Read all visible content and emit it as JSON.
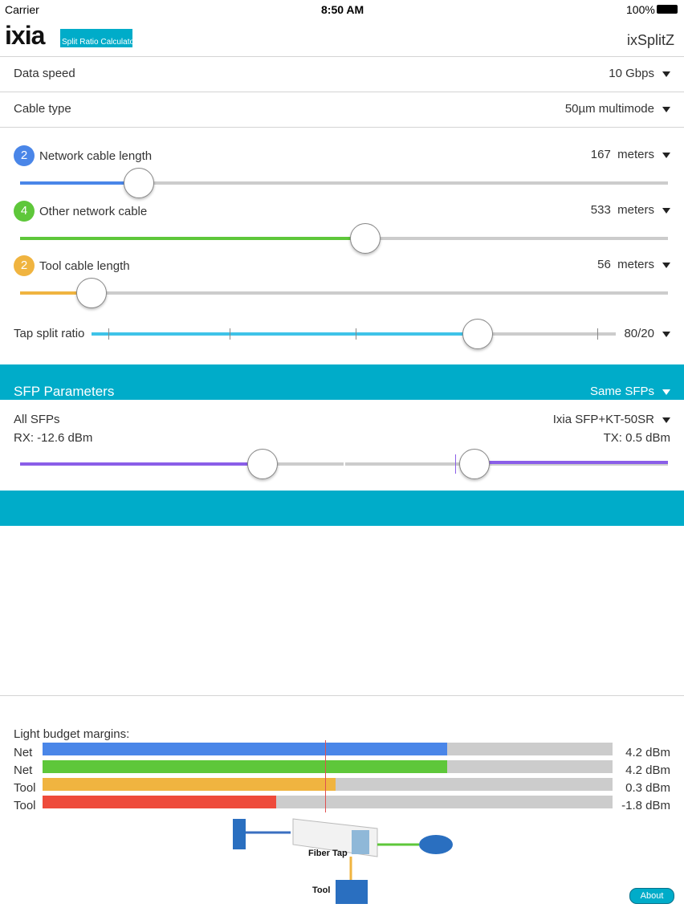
{
  "status_bar": {
    "carrier": "Carrier",
    "time": "8:50 AM",
    "battery": "100%"
  },
  "header": {
    "logo": "ixia",
    "badge": "Split Ratio Calculator",
    "title": "ixSplitZ"
  },
  "settings": [
    {
      "label": "Data speed",
      "value": "10 Gbps"
    },
    {
      "label": "Cable type",
      "value": "50µm multimode"
    }
  ],
  "cables": [
    {
      "badge": "2",
      "label": "Network cable length",
      "length": "167",
      "unit": "meters"
    },
    {
      "badge": "4",
      "label": "Other network cable",
      "length": "533",
      "unit": "meters"
    },
    {
      "badge": "2",
      "label": "Tool cable length",
      "length": "56",
      "unit": "meters"
    }
  ],
  "tap": {
    "label": "Tap split ratio",
    "value": "80/20"
  },
  "sfp": {
    "title": "SFP Parameters",
    "mode": "Same SFPs",
    "group": "All SFPs",
    "model": "Ixia SFP+KT-50SR",
    "rx": "RX: -12.6 dBm",
    "tx": "TX: 0.5 dBm"
  },
  "budget": {
    "title": "Light budget margins:",
    "rows": [
      {
        "label": "Net",
        "value": "4.2 dBm"
      },
      {
        "label": "Net",
        "value": "4.2 dBm"
      },
      {
        "label": "Tool",
        "value": "0.3 dBm"
      },
      {
        "label": "Tool",
        "value": "-1.8 dBm"
      }
    ]
  },
  "diagram": {
    "tap": "Fiber Tap",
    "tool": "Tool"
  },
  "about": "About"
}
